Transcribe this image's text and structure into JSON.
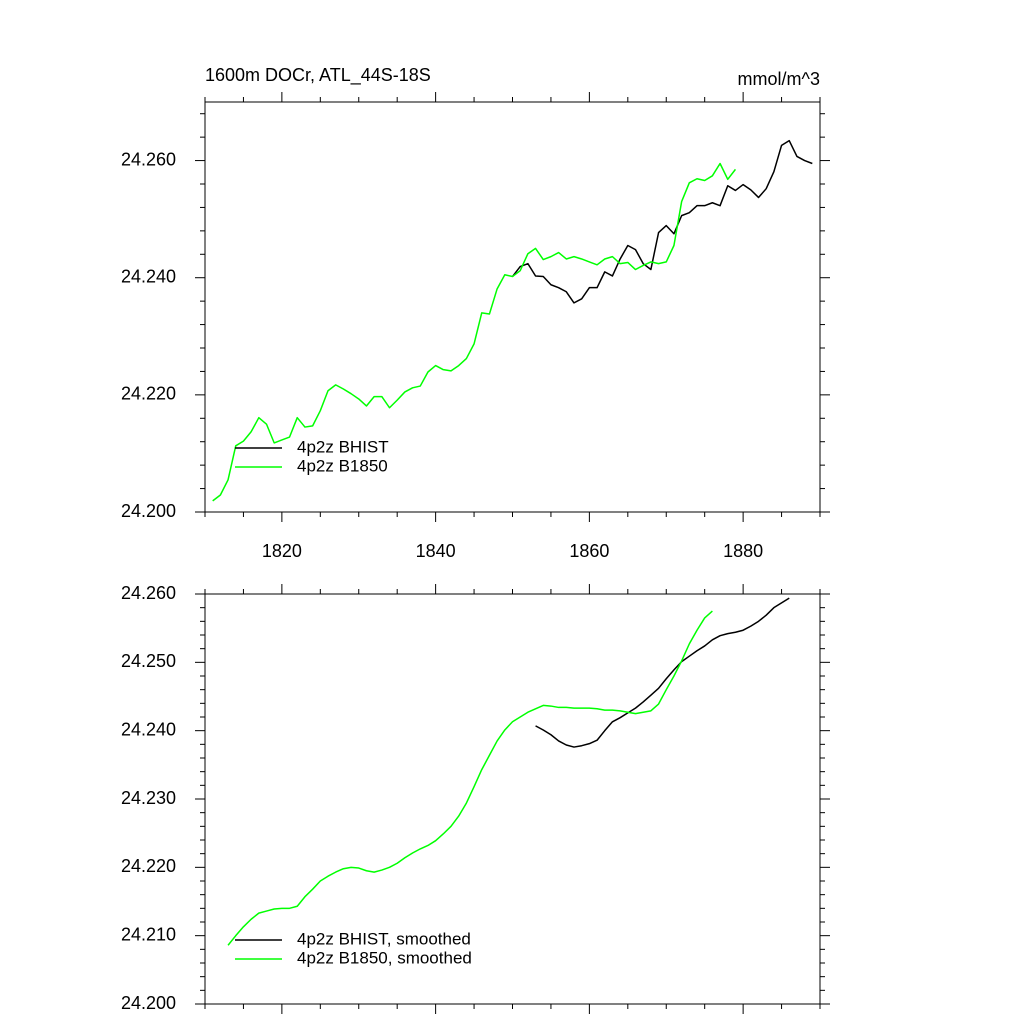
{
  "chart_data": [
    {
      "type": "line",
      "title": "1600m DOCr, ATL_44S-18S",
      "units": "mmol/m^3",
      "xlim": [
        1810,
        1890
      ],
      "xticks": [
        1820,
        1840,
        1860,
        1880
      ],
      "ylim": [
        24.2,
        24.27
      ],
      "yticks": [
        {
          "value": 24.2,
          "label": "24.200"
        },
        {
          "value": 24.22,
          "label": "24.220"
        },
        {
          "value": 24.24,
          "label": "24.240"
        },
        {
          "value": 24.26,
          "label": "24.260"
        }
      ],
      "legend": "lower left",
      "series": [
        {
          "name": "4p2z BHIST",
          "color": "#000000",
          "x": [
            1850,
            1851,
            1852,
            1853,
            1854,
            1855,
            1856,
            1857,
            1858,
            1859,
            1860,
            1861,
            1862,
            1863,
            1864,
            1865,
            1866,
            1867,
            1868,
            1869,
            1870,
            1871,
            1872,
            1873,
            1874,
            1875,
            1876,
            1877,
            1878,
            1879,
            1880,
            1881,
            1882,
            1883,
            1884,
            1885,
            1886,
            1887,
            1888,
            1889
          ],
          "values": [
            24.2402,
            24.2419,
            24.2424,
            24.2403,
            24.2402,
            24.2388,
            24.2383,
            24.2376,
            24.2357,
            24.2364,
            24.2383,
            24.2383,
            24.241,
            24.2403,
            24.2432,
            24.2455,
            24.2448,
            24.2424,
            24.2414,
            24.2477,
            24.2489,
            24.2475,
            24.2506,
            24.2511,
            24.2523,
            24.2523,
            24.2528,
            24.2523,
            24.2557,
            24.2549,
            24.2559,
            24.255,
            24.2537,
            24.2552,
            24.2581,
            24.2626,
            24.2634,
            24.2607,
            24.26,
            24.2595
          ]
        },
        {
          "name": "4p2z B1850",
          "color": "#00ff00",
          "x": [
            1811,
            1812,
            1813,
            1814,
            1815,
            1816,
            1817,
            1818,
            1819,
            1820,
            1821,
            1822,
            1823,
            1824,
            1825,
            1826,
            1827,
            1828,
            1829,
            1830,
            1831,
            1832,
            1833,
            1834,
            1835,
            1836,
            1837,
            1838,
            1839,
            1840,
            1841,
            1842,
            1843,
            1844,
            1845,
            1846,
            1847,
            1848,
            1849,
            1850,
            1851,
            1852,
            1853,
            1854,
            1855,
            1856,
            1857,
            1858,
            1859,
            1860,
            1861,
            1862,
            1863,
            1864,
            1865,
            1866,
            1867,
            1868,
            1869,
            1870,
            1871,
            1872,
            1873,
            1874,
            1875,
            1876,
            1877,
            1878,
            1879
          ],
          "values": [
            24.2019,
            24.2029,
            24.2055,
            24.2113,
            24.2121,
            24.2137,
            24.2161,
            24.215,
            24.2118,
            24.2123,
            24.2128,
            24.2161,
            24.2145,
            24.2147,
            24.2173,
            24.2207,
            24.2217,
            24.221,
            24.2202,
            24.2193,
            24.2181,
            24.2197,
            24.2197,
            24.2178,
            24.2191,
            24.2205,
            24.2212,
            24.2215,
            24.2239,
            24.225,
            24.2243,
            24.2241,
            24.225,
            24.2262,
            24.2287,
            24.234,
            24.2338,
            24.2381,
            24.2405,
            24.2402,
            24.2412,
            24.2441,
            24.245,
            24.2431,
            24.2436,
            24.2443,
            24.2432,
            24.2436,
            24.2432,
            24.2427,
            24.2422,
            24.2432,
            24.2436,
            24.2424,
            24.2426,
            24.2414,
            24.2421,
            24.2427,
            24.2424,
            24.2427,
            24.2455,
            24.253,
            24.2562,
            24.2569,
            24.2566,
            24.2574,
            24.2595,
            24.2568,
            24.2585
          ]
        }
      ]
    },
    {
      "type": "line",
      "xlim": [
        1810,
        1890
      ],
      "ylim": [
        24.2,
        24.26
      ],
      "yticks": [
        {
          "value": 24.2,
          "label": "24.200"
        },
        {
          "value": 24.21,
          "label": "24.210"
        },
        {
          "value": 24.22,
          "label": "24.220"
        },
        {
          "value": 24.23,
          "label": "24.230"
        },
        {
          "value": 24.24,
          "label": "24.240"
        },
        {
          "value": 24.25,
          "label": "24.250"
        },
        {
          "value": 24.26,
          "label": "24.260"
        }
      ],
      "legend": "lower left",
      "series": [
        {
          "name": "4p2z BHIST, smoothed",
          "color": "#000000",
          "x": [
            1853,
            1854,
            1855,
            1856,
            1857,
            1858,
            1859,
            1860,
            1861,
            1862,
            1863,
            1864,
            1865,
            1866,
            1867,
            1868,
            1869,
            1870,
            1871,
            1872,
            1873,
            1874,
            1875,
            1876,
            1877,
            1878,
            1879,
            1880,
            1881,
            1882,
            1883,
            1884,
            1885,
            1886
          ],
          "values": [
            24.2407,
            24.2401,
            24.2394,
            24.2385,
            24.2379,
            24.2376,
            24.2378,
            24.2381,
            24.2386,
            24.24,
            24.2413,
            24.2419,
            24.2426,
            24.2433,
            24.2442,
            24.2452,
            24.2462,
            24.2476,
            24.2489,
            24.2501,
            24.2509,
            24.2517,
            24.2524,
            24.2533,
            24.2539,
            24.2542,
            24.2544,
            24.2547,
            24.2553,
            24.256,
            24.2569,
            24.258,
            24.2587,
            24.2594
          ]
        },
        {
          "name": "4p2z B1850, smoothed",
          "color": "#00ff00",
          "x": [
            1813,
            1814,
            1815,
            1816,
            1817,
            1818,
            1819,
            1820,
            1821,
            1822,
            1823,
            1824,
            1825,
            1826,
            1827,
            1828,
            1829,
            1830,
            1831,
            1832,
            1833,
            1834,
            1835,
            1836,
            1837,
            1838,
            1839,
            1840,
            1841,
            1842,
            1843,
            1844,
            1845,
            1846,
            1847,
            1848,
            1849,
            1850,
            1851,
            1852,
            1853,
            1854,
            1855,
            1856,
            1857,
            1858,
            1859,
            1860,
            1861,
            1862,
            1863,
            1864,
            1865,
            1866,
            1867,
            1868,
            1869,
            1870,
            1871,
            1872,
            1873,
            1874,
            1875,
            1876
          ],
          "values": [
            24.2086,
            24.21,
            24.2113,
            24.2124,
            24.2133,
            24.2136,
            24.2139,
            24.214,
            24.214,
            24.2143,
            24.2157,
            24.2168,
            24.218,
            24.2187,
            24.2193,
            24.2198,
            24.22,
            24.2199,
            24.2195,
            24.2193,
            24.2196,
            24.22,
            24.2206,
            24.2214,
            24.2221,
            24.2227,
            24.2232,
            24.2239,
            24.2249,
            24.226,
            24.2275,
            24.2294,
            24.2318,
            24.2343,
            24.2364,
            24.2385,
            24.2401,
            24.2413,
            24.242,
            24.2427,
            24.2432,
            24.2437,
            24.2436,
            24.2434,
            24.2434,
            24.2433,
            24.2433,
            24.2433,
            24.2432,
            24.243,
            24.243,
            24.2429,
            24.2427,
            24.2425,
            24.2427,
            24.2429,
            24.2439,
            24.246,
            24.248,
            24.2502,
            24.2527,
            24.2547,
            24.2565,
            24.2575
          ]
        }
      ]
    }
  ]
}
